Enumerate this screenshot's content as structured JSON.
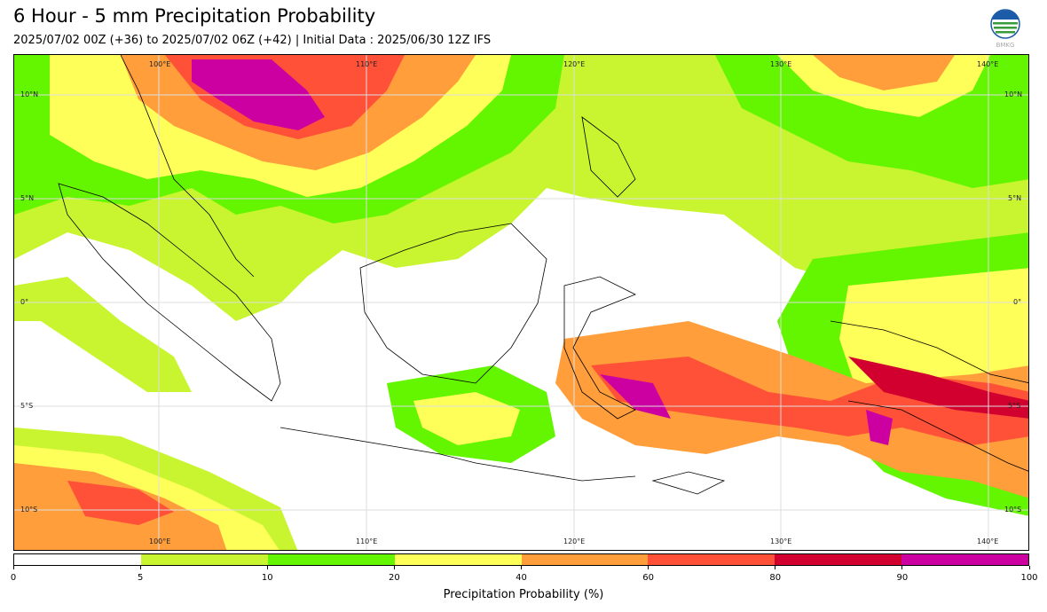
{
  "header": {
    "title": "6 Hour - 5 mm Precipitation Probability",
    "subtitle": "2025/07/02 00Z (+36) to 2025/07/02 06Z (+42) | Initial Data : 2025/06/30 12Z IFS",
    "logo_text": "BMKG"
  },
  "map": {
    "lon_labels": [
      "100°E",
      "110°E",
      "120°E",
      "130°E",
      "140°E"
    ],
    "lat_labels": [
      "10°N",
      "5°N",
      "0°",
      "5°S",
      "10°S"
    ]
  },
  "colorbar": {
    "label": "Precipitation Probability (%)",
    "ticks": [
      "0",
      "5",
      "10",
      "20",
      "40",
      "60",
      "80",
      "90",
      "100"
    ],
    "colors": [
      "#ffffff",
      "#c8f530",
      "#64f500",
      "#ffff5a",
      "#ff9e3a",
      "#ff5038",
      "#d2002e",
      "#cc00a0"
    ]
  }
}
